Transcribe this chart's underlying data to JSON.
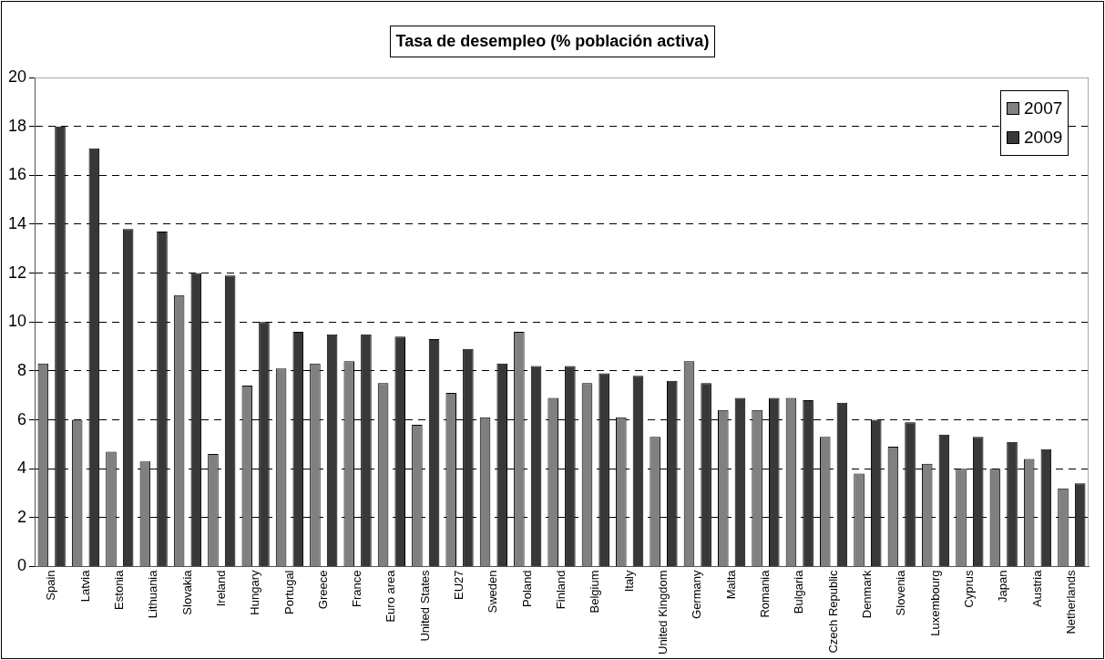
{
  "chart_data": {
    "type": "bar",
    "title": "Tasa de desempleo (% población activa)",
    "categories": [
      "Spain",
      "Latvia",
      "Estonia",
      "Lithuania",
      "Slovakia",
      "Ireland",
      "Hungary",
      "Portugal",
      "Greece",
      "France",
      "Euro area",
      "United States",
      "EU27",
      "Sweden",
      "Poland",
      "Finland",
      "Belgium",
      "Italy",
      "United Kingdom",
      "Germany",
      "Malta",
      "Romania",
      "Bulgaria",
      "Czech Republic",
      "Denmark",
      "Slovenia",
      "Luxembourg",
      "Cyprus",
      "Japan",
      "Austria",
      "Netherlands"
    ],
    "series": [
      {
        "name": "2007",
        "color": "#808080",
        "values": [
          8.3,
          6.0,
          4.7,
          4.3,
          11.1,
          4.6,
          7.4,
          8.1,
          8.3,
          8.4,
          7.5,
          5.8,
          7.1,
          6.1,
          9.6,
          6.9,
          7.5,
          6.1,
          5.3,
          8.4,
          6.4,
          6.4,
          6.9,
          5.3,
          3.8,
          4.9,
          4.2,
          4.0,
          4.0,
          4.4,
          3.2
        ]
      },
      {
        "name": "2009",
        "color": "#383838",
        "values": [
          18.0,
          17.1,
          13.8,
          13.7,
          12.0,
          11.9,
          10.0,
          9.6,
          9.5,
          9.5,
          9.4,
          9.3,
          8.9,
          8.3,
          8.2,
          8.2,
          7.9,
          7.8,
          7.6,
          7.5,
          6.9,
          6.9,
          6.8,
          6.7,
          6.0,
          5.9,
          5.4,
          5.3,
          5.1,
          4.8,
          3.4
        ]
      }
    ],
    "ylim": [
      0,
      20
    ],
    "yticks": [
      0,
      2,
      4,
      6,
      8,
      10,
      12,
      14,
      16,
      18,
      20
    ],
    "grid": "y",
    "legend": "top right"
  }
}
